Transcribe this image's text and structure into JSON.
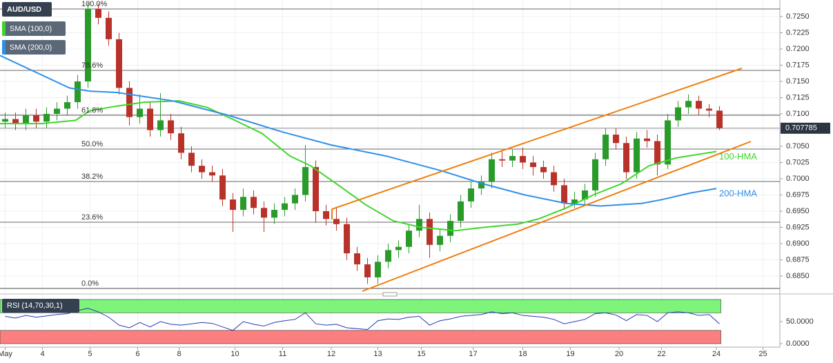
{
  "chart_data": [
    {
      "type": "candlestick",
      "symbol": "AUD/USD",
      "up_color": "#2a9a2a",
      "down_color": "#b8322a",
      "ylim": [
        0.68234,
        0.72755
      ],
      "xlim": [
        -0.5,
        74.83
      ],
      "yticks": [
        {
          "value": 0.725,
          "label": "0.7250"
        },
        {
          "value": 0.7225,
          "label": "0.7225"
        },
        {
          "value": 0.72,
          "label": "0.7200"
        },
        {
          "value": 0.7175,
          "label": "0.7175"
        },
        {
          "value": 0.715,
          "label": "0.7150"
        },
        {
          "value": 0.7125,
          "label": "0.7125"
        },
        {
          "value": 0.71,
          "label": "0.7100"
        },
        {
          "value": 0.7075,
          "label": "0.7075"
        },
        {
          "value": 0.705,
          "label": "0.7050"
        },
        {
          "value": 0.7025,
          "label": "0.7025"
        },
        {
          "value": 0.7,
          "label": "0.7000"
        },
        {
          "value": 0.6975,
          "label": "0.6975"
        },
        {
          "value": 0.695,
          "label": "0.6950"
        },
        {
          "value": 0.6925,
          "label": "0.6925"
        },
        {
          "value": 0.69,
          "label": "0.6900"
        },
        {
          "value": 0.6875,
          "label": "0.6875"
        },
        {
          "value": 0.685,
          "label": "0.6850"
        }
      ],
      "xticks": [
        {
          "value": 0,
          "label": "May"
        },
        {
          "value": 3.6,
          "label": "4"
        },
        {
          "value": 8.2,
          "label": "5"
        },
        {
          "value": 12.8,
          "label": "6"
        },
        {
          "value": 16.8,
          "label": "8"
        },
        {
          "value": 22.2,
          "label": "10"
        },
        {
          "value": 26.8,
          "label": "11"
        },
        {
          "value": 31.5,
          "label": "12"
        },
        {
          "value": 36,
          "label": "13"
        },
        {
          "value": 40.2,
          "label": "15"
        },
        {
          "value": 45.2,
          "label": "17"
        },
        {
          "value": 50,
          "label": "18"
        },
        {
          "value": 54.6,
          "label": "19"
        },
        {
          "value": 59.3,
          "label": "20"
        },
        {
          "value": 63.4,
          "label": "22"
        },
        {
          "value": 68.7,
          "label": "24"
        },
        {
          "value": 73.2,
          "label": "25"
        }
      ],
      "grid": true,
      "last_price": 0.707785,
      "fib_levels": [
        {
          "label": "100.0%",
          "value": 0.72617
        },
        {
          "label": "78.6%",
          "value": 0.7167
        },
        {
          "label": "61.8%",
          "value": 0.70979
        },
        {
          "label": "50.0%",
          "value": 0.70457
        },
        {
          "label": "38.2%",
          "value": 0.69957
        },
        {
          "label": "23.6%",
          "value": 0.6933
        },
        {
          "label": "0.0%",
          "value": 0.68309
        }
      ],
      "ohlc": [
        [
          0.7088,
          0.7102,
          0.7078,
          0.7092
        ],
        [
          0.7092,
          0.7102,
          0.7075,
          0.7085
        ],
        [
          0.7085,
          0.7108,
          0.7075,
          0.7098
        ],
        [
          0.7098,
          0.7108,
          0.7078,
          0.7088
        ],
        [
          0.7088,
          0.711,
          0.7078,
          0.71
        ],
        [
          0.71,
          0.7118,
          0.709,
          0.7108
        ],
        [
          0.7108,
          0.7128,
          0.7098,
          0.7118
        ],
        [
          0.7118,
          0.716,
          0.7108,
          0.715
        ],
        [
          0.715,
          0.7272,
          0.714,
          0.7262
        ],
        [
          0.7262,
          0.727,
          0.7238,
          0.7248
        ],
        [
          0.7248,
          0.7258,
          0.7205,
          0.7215
        ],
        [
          0.7215,
          0.7225,
          0.713,
          0.714
        ],
        [
          0.714,
          0.715,
          0.7082,
          0.7095
        ],
        [
          0.7095,
          0.713,
          0.7085,
          0.7108
        ],
        [
          0.7108,
          0.7118,
          0.7065,
          0.7075
        ],
        [
          0.7075,
          0.7132,
          0.7065,
          0.709
        ],
        [
          0.709,
          0.71,
          0.706,
          0.707
        ],
        [
          0.707,
          0.708,
          0.703,
          0.704
        ],
        [
          0.704,
          0.705,
          0.701,
          0.702
        ],
        [
          0.702,
          0.703,
          0.7,
          0.701
        ],
        [
          0.701,
          0.702,
          0.6995,
          0.7005
        ],
        [
          0.7005,
          0.7015,
          0.6958,
          0.6968
        ],
        [
          0.6968,
          0.6978,
          0.6918,
          0.6952
        ],
        [
          0.6952,
          0.6985,
          0.6942,
          0.6972
        ],
        [
          0.6972,
          0.6982,
          0.6945,
          0.6955
        ],
        [
          0.6955,
          0.6965,
          0.6918,
          0.694
        ],
        [
          0.694,
          0.6962,
          0.693,
          0.6952
        ],
        [
          0.6952,
          0.6972,
          0.6942,
          0.6962
        ],
        [
          0.6962,
          0.6985,
          0.6952,
          0.6975
        ],
        [
          0.6975,
          0.7052,
          0.6965,
          0.7018
        ],
        [
          0.7018,
          0.7028,
          0.6932,
          0.695
        ],
        [
          0.695,
          0.696,
          0.6928,
          0.6938
        ],
        [
          0.6938,
          0.6955,
          0.692,
          0.693
        ],
        [
          0.693,
          0.694,
          0.6875,
          0.6885
        ],
        [
          0.6885,
          0.6895,
          0.6858,
          0.6868
        ],
        [
          0.6868,
          0.6878,
          0.6838,
          0.6848
        ],
        [
          0.6848,
          0.6882,
          0.6838,
          0.6872
        ],
        [
          0.6872,
          0.69,
          0.6862,
          0.689
        ],
        [
          0.689,
          0.6905,
          0.6878,
          0.6895
        ],
        [
          0.6895,
          0.693,
          0.6885,
          0.692
        ],
        [
          0.692,
          0.696,
          0.691,
          0.6938
        ],
        [
          0.6938,
          0.6948,
          0.6878,
          0.6898
        ],
        [
          0.6898,
          0.6922,
          0.6888,
          0.6912
        ],
        [
          0.6912,
          0.6945,
          0.6902,
          0.6935
        ],
        [
          0.6935,
          0.6975,
          0.6925,
          0.6965
        ],
        [
          0.6965,
          0.6995,
          0.6955,
          0.6985
        ],
        [
          0.6985,
          0.7005,
          0.6975,
          0.6995
        ],
        [
          0.6995,
          0.704,
          0.6985,
          0.703
        ],
        [
          0.703,
          0.7042,
          0.7018,
          0.7028
        ],
        [
          0.7028,
          0.7045,
          0.7018,
          0.7035
        ],
        [
          0.7035,
          0.7048,
          0.7015,
          0.7025
        ],
        [
          0.7025,
          0.7035,
          0.7005,
          0.7018
        ],
        [
          0.7018,
          0.7028,
          0.7,
          0.701
        ],
        [
          0.701,
          0.702,
          0.698,
          0.699
        ],
        [
          0.699,
          0.7,
          0.6952,
          0.6962
        ],
        [
          0.6962,
          0.698,
          0.6955,
          0.6968
        ],
        [
          0.6968,
          0.6992,
          0.6958,
          0.6982
        ],
        [
          0.6982,
          0.704,
          0.6972,
          0.703
        ],
        [
          0.703,
          0.7078,
          0.702,
          0.7068
        ],
        [
          0.7068,
          0.7078,
          0.7045,
          0.7055
        ],
        [
          0.7055,
          0.7065,
          0.7,
          0.701
        ],
        [
          0.701,
          0.7072,
          0.7,
          0.7062
        ],
        [
          0.7062,
          0.7075,
          0.7048,
          0.7058
        ],
        [
          0.7058,
          0.7068,
          0.7005,
          0.7022
        ],
        [
          0.7022,
          0.71,
          0.7015,
          0.709
        ],
        [
          0.709,
          0.712,
          0.708,
          0.711
        ],
        [
          0.711,
          0.713,
          0.71,
          0.712
        ],
        [
          0.712,
          0.7128,
          0.7098,
          0.7108
        ],
        [
          0.7108,
          0.7115,
          0.7095,
          0.7105
        ],
        [
          0.7105,
          0.7112,
          0.7075,
          0.7078
        ]
      ],
      "series": [
        {
          "name": "SMA (100,0)",
          "label": "100-HMA",
          "color": "#3fd62a",
          "x": [
            -0.5,
            3.5,
            6.8,
            8.2,
            10.8,
            13.5,
            16.8,
            19.5,
            22.2,
            24.8,
            27.5,
            29.5,
            32.2,
            34.8,
            37.5,
            40.2,
            43.5,
            46.2,
            49.5,
            51.5,
            54.2,
            56.8,
            59.5,
            62.2,
            64.8,
            68.7
          ],
          "values": [
            0.7085,
            0.7085,
            0.709,
            0.7105,
            0.7112,
            0.7118,
            0.712,
            0.711,
            0.709,
            0.707,
            0.7035,
            0.702,
            0.699,
            0.696,
            0.6935,
            0.6925,
            0.692,
            0.6925,
            0.693,
            0.6938,
            0.6955,
            0.6975,
            0.6992,
            0.702,
            0.7032,
            0.7042
          ]
        },
        {
          "name": "SMA (200,0)",
          "label": "200-HMA",
          "color": "#2f8fe8",
          "x": [
            -0.5,
            6.2,
            8.2,
            10.8,
            16.2,
            21.5,
            26.8,
            31.5,
            36.8,
            42.2,
            46.2,
            50.2,
            54.2,
            57.5,
            61.5,
            63.5,
            66.2,
            68.7
          ],
          "values": [
            0.719,
            0.714,
            0.7135,
            0.7133,
            0.712,
            0.7098,
            0.7072,
            0.7052,
            0.7035,
            0.7012,
            0.6992,
            0.6975,
            0.6962,
            0.6958,
            0.6962,
            0.6968,
            0.6978,
            0.6985
          ]
        }
      ]
    },
    {
      "type": "line",
      "title": "RSI (14,70,30,1)",
      "color": "#2438b8",
      "ylim": [
        -7.8,
        109.4
      ],
      "yticks": [
        {
          "value": 50,
          "label": "50.0000"
        },
        {
          "value": 0,
          "label": "0.0000"
        }
      ],
      "bands": [
        {
          "from": 70,
          "to": 100,
          "color": "#7ef57a"
        },
        {
          "from": 0,
          "to": 30,
          "color": "#fb7f7f"
        }
      ],
      "values": [
        62,
        58,
        64,
        60,
        63,
        66,
        68,
        75,
        80,
        72,
        60,
        42,
        36,
        48,
        38,
        50,
        44,
        42,
        45,
        48,
        46,
        38,
        30,
        50,
        44,
        40,
        48,
        52,
        55,
        70,
        45,
        42,
        44,
        36,
        34,
        32,
        52,
        56,
        55,
        60,
        62,
        42,
        52,
        56,
        62,
        64,
        66,
        72,
        68,
        70,
        64,
        62,
        60,
        55,
        45,
        50,
        55,
        68,
        70,
        65,
        52,
        66,
        64,
        50,
        70,
        72,
        70,
        64,
        66,
        45
      ]
    }
  ]
}
